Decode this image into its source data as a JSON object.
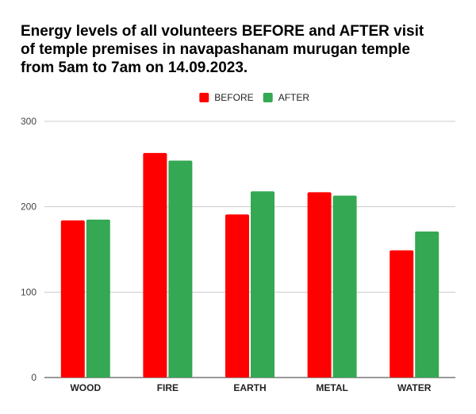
{
  "chart_data": {
    "type": "bar",
    "title_lines": [
      "Energy levels of all volunteers BEFORE and AFTER visit",
      "of temple premises in navapashanam murugan temple",
      "from 5am to 7am on 14.09.2023."
    ],
    "categories": [
      "WOOD",
      "FIRE",
      "EARTH",
      "METAL",
      "WATER"
    ],
    "series": [
      {
        "name": "BEFORE",
        "color": "#ff0000",
        "values": [
          184,
          263,
          191,
          217,
          149
        ]
      },
      {
        "name": "AFTER",
        "color": "#34a853",
        "values": [
          185,
          254,
          218,
          213,
          171
        ]
      }
    ],
    "ylim": [
      0,
      300
    ],
    "yticks": [
      0,
      100,
      200,
      300
    ],
    "grid": true,
    "legend_position": "top-center",
    "xlabel": "",
    "ylabel": ""
  }
}
